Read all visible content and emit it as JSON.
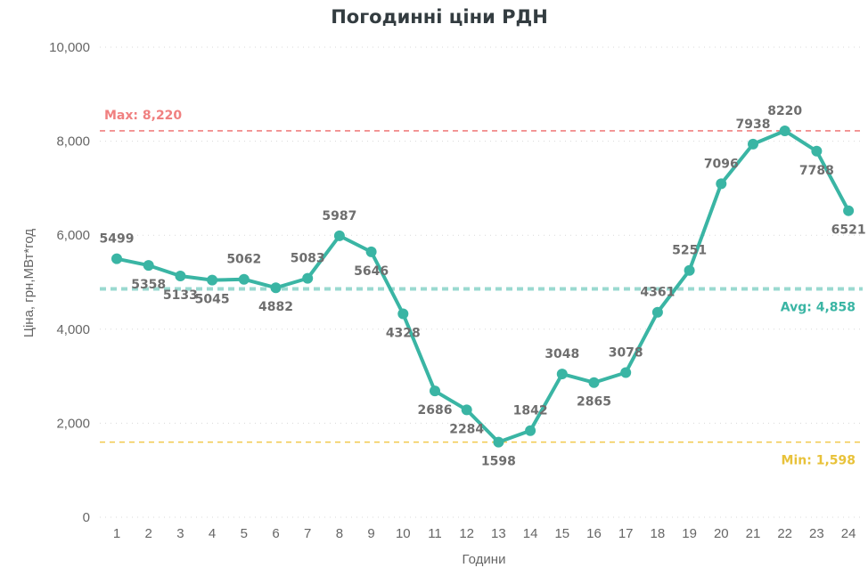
{
  "chart_data": {
    "type": "line",
    "title": "Погодинні ціни РДН",
    "xlabel": "Години",
    "ylabel": "Ціна, грн,МВт*год",
    "categories": [
      "1",
      "2",
      "3",
      "4",
      "5",
      "6",
      "7",
      "8",
      "9",
      "10",
      "11",
      "12",
      "13",
      "14",
      "15",
      "16",
      "17",
      "18",
      "19",
      "20",
      "21",
      "22",
      "23",
      "24"
    ],
    "series": [
      {
        "values": [
          5499,
          5358,
          5133,
          5045,
          5062,
          4882,
          5083,
          5987,
          5646,
          4328,
          2686,
          2284,
          1598,
          1842,
          3048,
          2865,
          3078,
          4361,
          5251,
          7096,
          7938,
          8220,
          7788,
          6521
        ],
        "labels": [
          "5499",
          "5358",
          "5133",
          "5045",
          "5062",
          "4882",
          "5083",
          "5987",
          "5646",
          "4328",
          "2686",
          "2284",
          "1598",
          "1842",
          "3048",
          "2865",
          "3078",
          "4361",
          "5251",
          "7096",
          "7938",
          "8220",
          "7788",
          "6521"
        ],
        "color": "#3ab5a4"
      }
    ],
    "ylim": [
      0,
      10000
    ],
    "yticks": [
      0,
      2000,
      4000,
      6000,
      8000,
      10000
    ],
    "ytick_labels": [
      "0",
      "2,000",
      "4,000",
      "6,000",
      "8,000",
      "10,000"
    ],
    "grid": true,
    "reference_lines": [
      {
        "label": "Max: 8,220",
        "value": 8220,
        "color": "#f08080",
        "position": "top-left"
      },
      {
        "label": "Avg: 4,858",
        "value": 4858,
        "color": "#9ad9d0",
        "text_color": "#3ab5a4",
        "position": "bottom-right"
      },
      {
        "label": "Min: 1,598",
        "value": 1598,
        "color": "#f2c94c",
        "text_color": "#e8c23a",
        "position": "bottom-right"
      }
    ]
  }
}
